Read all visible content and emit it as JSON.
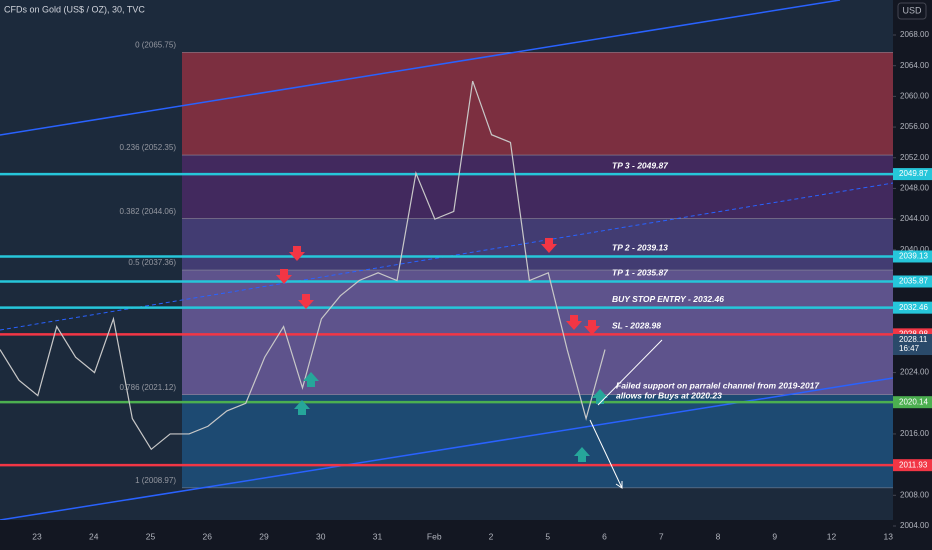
{
  "header": {
    "title": "CFDs on Gold (US$ / OZ), 30, TVC",
    "currency": "USD"
  },
  "price_axis": {
    "lim": [
      2004,
      2068
    ],
    "ticks": [
      {
        "value": 2068,
        "label": "2068.00"
      },
      {
        "value": 2064,
        "label": "2064.00"
      },
      {
        "value": 2060,
        "label": "2060.00"
      },
      {
        "value": 2056,
        "label": "2056.00"
      },
      {
        "value": 2052,
        "label": "2052.00"
      },
      {
        "value": 2048,
        "label": "2048.00"
      },
      {
        "value": 2044,
        "label": "2044.00"
      },
      {
        "value": 2040,
        "label": "2040.00"
      },
      {
        "value": 2036,
        "label": "2036.00"
      },
      {
        "value": 2032,
        "label": "2032.00"
      },
      {
        "value": 2028,
        "label": "2028.00"
      },
      {
        "value": 2024,
        "label": "2024.00"
      },
      {
        "value": 2020,
        "label": "2020.00"
      },
      {
        "value": 2016,
        "label": "2016.00"
      },
      {
        "value": 2012,
        "label": "2012.00"
      },
      {
        "value": 2008,
        "label": "2008.00"
      },
      {
        "value": 2004,
        "label": "2004.00"
      }
    ]
  },
  "time_axis": {
    "labels": [
      "23",
      "24",
      "25",
      "26",
      "29",
      "30",
      "31",
      "Feb",
      "2",
      "5",
      "6",
      "7",
      "8",
      "9",
      "12",
      "13"
    ]
  },
  "price_line": {
    "color": "#c8c8c8",
    "values": [
      2027,
      2023,
      2021,
      2030,
      2026,
      2024,
      2031,
      2018,
      2014,
      2016,
      2016,
      2017,
      2019,
      2020,
      2026,
      2030,
      2022,
      2031,
      2034,
      2036,
      2037,
      2036,
      2050,
      2044,
      2045,
      2062,
      2055,
      2054,
      2036,
      2037,
      2027,
      2018,
      2027
    ]
  },
  "fib": [
    {
      "value": 2065.75,
      "label": "0 (2065.75)"
    },
    {
      "value": 2052.35,
      "label": "0.236 (2052.35)"
    },
    {
      "value": 2044.06,
      "label": "0.382 (2044.06)"
    },
    {
      "value": 2037.36,
      "label": "0.5 (2037.36)"
    },
    {
      "value": 2021.12,
      "label": "0.786 (2021.12)"
    },
    {
      "value": 2008.97,
      "label": "1 (2008.97)"
    }
  ],
  "levels": [
    {
      "value": 2049.87,
      "text": "TP 3 - 2049.87",
      "color": "#26c6da"
    },
    {
      "value": 2039.13,
      "text": "TP 2 - 2039.13",
      "color": "#26c6da"
    },
    {
      "value": 2035.87,
      "text": "TP 1 - 2035.87",
      "color": "#26c6da"
    },
    {
      "value": 2032.46,
      "text": "BUY STOP ENTRY - 2032.46",
      "color": "#26c6da"
    },
    {
      "value": 2028.98,
      "text": "SL - 2028.98",
      "color": "#f23645"
    },
    {
      "value": 2020.14,
      "text": null,
      "color": "#4caf50"
    },
    {
      "value": 2011.93,
      "text": null,
      "color": "#f23645"
    }
  ],
  "current_price": {
    "value": 2028.11,
    "time": "16:47"
  },
  "annotation": [
    "Failed support on parralel channel from 2019-2017",
    "allows for Buys at 2020.23"
  ]
}
